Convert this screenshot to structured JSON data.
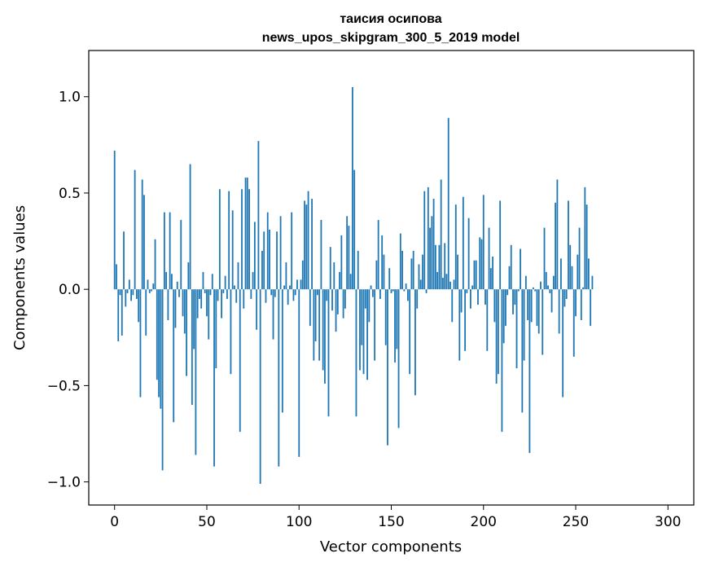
{
  "chart_data": {
    "type": "bar",
    "title_line1": "таисия осипова",
    "title_line2": "news_upos_skipgram_300_5_2019 model",
    "xlabel": "Vector components",
    "ylabel": "Components values",
    "xlim": [
      -14,
      314
    ],
    "ylim": [
      -1.12,
      1.24
    ],
    "xticks": [
      0,
      50,
      100,
      150,
      200,
      250,
      300
    ],
    "yticks": [
      -1.0,
      -0.5,
      0.0,
      0.5,
      1.0
    ],
    "xtick_labels": [
      "0",
      "50",
      "100",
      "150",
      "200",
      "250",
      "300"
    ],
    "ytick_labels": [
      "−1.0",
      "−0.5",
      "0.0",
      "0.5",
      "1.0"
    ],
    "bar_color": "#1f77b4",
    "grid": false,
    "values": [
      0.72,
      0.13,
      -0.27,
      -0.03,
      -0.24,
      0.3,
      -0.09,
      -0.02,
      0.05,
      -0.06,
      -0.03,
      0.62,
      -0.05,
      -0.17,
      -0.56,
      0.57,
      0.49,
      -0.24,
      0.05,
      -0.02,
      -0.01,
      0.03,
      0.26,
      -0.47,
      -0.56,
      -0.62,
      -0.94,
      0.4,
      0.09,
      -0.16,
      0.4,
      0.08,
      -0.69,
      -0.2,
      0.04,
      -0.04,
      0.36,
      -0.14,
      -0.23,
      -0.45,
      0.14,
      0.65,
      -0.6,
      -0.31,
      -0.86,
      -0.15,
      -0.05,
      -0.1,
      0.09,
      -0.02,
      -0.14,
      -0.26,
      -0.03,
      0.08,
      -0.92,
      -0.41,
      -0.06,
      0.52,
      -0.15,
      -0.02,
      0.07,
      -0.05,
      0.51,
      -0.44,
      0.41,
      0.02,
      -0.07,
      0.14,
      -0.74,
      0.52,
      -0.1,
      0.58,
      0.58,
      0.52,
      -0.05,
      0.09,
      0.35,
      -0.21,
      0.77,
      -1.01,
      0.2,
      0.3,
      -0.07,
      0.4,
      0.31,
      -0.03,
      -0.26,
      -0.04,
      0.3,
      -0.92,
      0.38,
      -0.64,
      0.02,
      0.14,
      -0.08,
      0.02,
      0.4,
      -0.06,
      -0.03,
      0.05,
      -0.87,
      0.05,
      0.15,
      0.46,
      0.44,
      0.51,
      -0.19,
      0.47,
      -0.37,
      -0.27,
      -0.03,
      -0.37,
      0.36,
      -0.42,
      -0.49,
      -0.06,
      -0.66,
      0.22,
      -0.11,
      0.14,
      -0.22,
      -0.13,
      0.09,
      0.28,
      -0.15,
      -0.1,
      0.38,
      0.33,
      0.08,
      1.05,
      0.62,
      -0.66,
      0.2,
      -0.42,
      -0.29,
      -0.44,
      -0.1,
      -0.47,
      -0.17,
      0.02,
      -0.04,
      -0.37,
      0.15,
      0.36,
      -0.05,
      0.28,
      0.18,
      -0.29,
      -0.81,
      0.11,
      -0.02,
      -0.01,
      -0.38,
      -0.31,
      -0.72,
      0.29,
      0.2,
      -0.01,
      0.03,
      -0.06,
      -0.44,
      0.16,
      0.2,
      -0.55,
      -0.1,
      0.13,
      0.05,
      0.18,
      0.51,
      -0.02,
      0.53,
      0.32,
      0.38,
      0.47,
      0.23,
      0.09,
      0.23,
      0.57,
      0.06,
      0.24,
      0.08,
      0.89,
      0.04,
      -0.17,
      0.05,
      0.44,
      0.18,
      -0.37,
      -0.12,
      0.48,
      -0.32,
      -0.02,
      0.37,
      -0.1,
      0.02,
      0.15,
      0.15,
      -0.08,
      0.27,
      0.26,
      0.49,
      -0.08,
      -0.32,
      0.32,
      0.11,
      0.17,
      -0.17,
      -0.49,
      -0.44,
      0.46,
      -0.74,
      -0.28,
      -0.19,
      -0.03,
      0.12,
      0.23,
      -0.13,
      -0.08,
      -0.41,
      -0.01,
      0.21,
      -0.64,
      -0.37,
      0.07,
      -0.16,
      -0.85,
      -0.17,
      0.01,
      -0.01,
      -0.19,
      -0.23,
      0.04,
      -0.34,
      0.32,
      0.09,
      0.02,
      -0.02,
      -0.12,
      0.07,
      0.45,
      0.57,
      -0.23,
      0.16,
      -0.56,
      -0.09,
      -0.05,
      0.46,
      0.23,
      0.12,
      -0.35,
      -0.14,
      0.18,
      0.32,
      -0.16,
      0.01,
      0.53,
      0.44,
      0.16,
      -0.19,
      0.07
    ]
  }
}
